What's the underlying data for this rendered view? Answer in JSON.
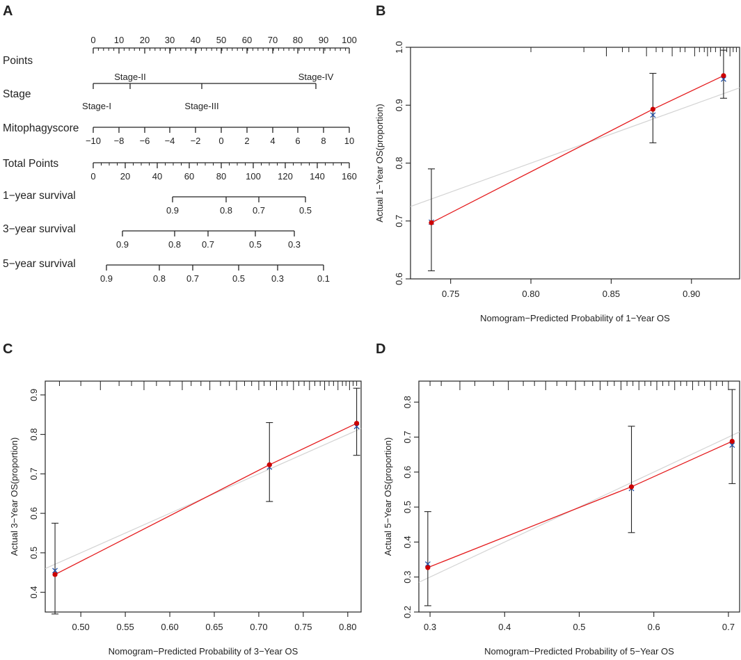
{
  "colors": {
    "fit": "#e41a1c",
    "diagonal": "#d3d3d3",
    "point": "#cc0000",
    "cross": "#1f4ea8",
    "ink": "#222222"
  },
  "chart_data": [
    {
      "panel": "A",
      "type": "nomogram",
      "rows": [
        {
          "label": "Points",
          "kind": "axis",
          "ticks": [
            "0",
            "10",
            "20",
            "30",
            "40",
            "50",
            "60",
            "70",
            "80",
            "90",
            "100"
          ],
          "tick_side": "above",
          "minor": true
        },
        {
          "label": "Stage",
          "kind": "stage",
          "labels_above": [
            "Stage-II",
            "Stage-IV"
          ],
          "labels_below": [
            "Stage-I",
            "Stage-III"
          ]
        },
        {
          "label": "Mitophagyscore",
          "kind": "axis",
          "ticks": [
            "−10",
            "−8",
            "−6",
            "−4",
            "−2",
            "0",
            "2",
            "4",
            "6",
            "8",
            "10"
          ],
          "tick_side": "below",
          "minor": false
        },
        {
          "label": "Total Points",
          "kind": "axis",
          "ticks": [
            "0",
            "20",
            "40",
            "60",
            "80",
            "100",
            "120",
            "140",
            "160"
          ],
          "tick_side": "below",
          "minor": true
        },
        {
          "label": "1−year survival",
          "kind": "axis",
          "ticks": [
            "0.9",
            "0.8",
            "0.7",
            "0.5"
          ],
          "tick_side": "below",
          "minor": false
        },
        {
          "label": "3−year survival",
          "kind": "axis",
          "ticks": [
            "0.9",
            "0.8",
            "0.7",
            "0.5",
            "0.3"
          ],
          "tick_side": "below",
          "minor": false
        },
        {
          "label": "5−year survival",
          "kind": "axis",
          "ticks": [
            "0.9",
            "0.8",
            "0.7",
            "0.5",
            "0.3",
            "0.1"
          ],
          "tick_side": "below",
          "minor": false
        }
      ],
      "points_by_variable": {
        "Stage-I": 0,
        "Stage-II": 14,
        "Stage-III": 42,
        "Stage-IV": 87,
        "Mitophagyscore_at_-10": 0,
        "Mitophagyscore_at_10": 100
      }
    },
    {
      "panel": "B",
      "type": "calibration",
      "xlabel": "Nomogram−Predicted Probability of 1−Year OS",
      "ylabel": "Actual 1−Year OS(proportion)",
      "xlim": [
        0.725,
        0.93
      ],
      "ylim": [
        0.6,
        1.0
      ],
      "xticks": [
        0.75,
        0.8,
        0.85,
        0.9
      ],
      "yticks": [
        0.6,
        0.7,
        0.8,
        0.9,
        1.0
      ],
      "points": [
        {
          "x": 0.738,
          "y": 0.697,
          "lower": 0.614,
          "upper": 0.79,
          "corrected": 0.698
        },
        {
          "x": 0.876,
          "y": 0.893,
          "lower": 0.835,
          "upper": 0.955,
          "corrected": 0.883
        },
        {
          "x": 0.92,
          "y": 0.951,
          "lower": 0.912,
          "upper": 0.995,
          "corrected": 0.945
        }
      ],
      "rug": [
        0.8,
        0.833,
        0.847,
        0.857,
        0.861,
        0.872,
        0.878,
        0.882,
        0.888,
        0.893,
        0.896,
        0.902,
        0.905,
        0.908,
        0.91,
        0.912,
        0.915,
        0.918,
        0.92,
        0.922,
        0.924,
        0.926,
        0.928
      ]
    },
    {
      "panel": "C",
      "type": "calibration",
      "xlabel": "Nomogram−Predicted Probability of 3−Year OS",
      "ylabel": "Actual 3−Year OS(proportion)",
      "xlim": [
        0.46,
        0.815
      ],
      "ylim": [
        0.35,
        0.935
      ],
      "xticks": [
        0.5,
        0.55,
        0.6,
        0.65,
        0.7,
        0.75,
        0.8
      ],
      "yticks": [
        0.4,
        0.5,
        0.6,
        0.7,
        0.8,
        0.9
      ],
      "points": [
        {
          "x": 0.471,
          "y": 0.445,
          "lower": 0.345,
          "upper": 0.575,
          "corrected": 0.455
        },
        {
          "x": 0.712,
          "y": 0.723,
          "lower": 0.63,
          "upper": 0.83,
          "corrected": 0.717
        },
        {
          "x": 0.81,
          "y": 0.828,
          "lower": 0.747,
          "upper": 0.917,
          "corrected": 0.82
        }
      ],
      "rug": [
        0.476,
        0.5,
        0.522,
        0.543,
        0.557,
        0.571,
        0.585,
        0.6,
        0.614,
        0.624,
        0.635,
        0.645,
        0.657,
        0.667,
        0.675,
        0.684,
        0.692,
        0.7,
        0.706,
        0.713,
        0.72,
        0.726,
        0.732,
        0.739,
        0.745,
        0.751,
        0.757,
        0.763,
        0.769,
        0.774,
        0.779,
        0.784,
        0.789,
        0.794,
        0.798,
        0.802,
        0.806,
        0.81
      ]
    },
    {
      "panel": "D",
      "type": "calibration",
      "xlabel": "Nomogram−Predicted Probability of 5−Year OS",
      "ylabel": "Actual 5−Year OS(proportion)",
      "xlim": [
        0.285,
        0.715
      ],
      "ylim": [
        0.2,
        0.86
      ],
      "xticks": [
        0.3,
        0.4,
        0.5,
        0.6,
        0.7
      ],
      "yticks": [
        0.2,
        0.3,
        0.4,
        0.5,
        0.6,
        0.7,
        0.8
      ],
      "points": [
        {
          "x": 0.297,
          "y": 0.327,
          "lower": 0.218,
          "upper": 0.487,
          "corrected": 0.337
        },
        {
          "x": 0.57,
          "y": 0.558,
          "lower": 0.427,
          "upper": 0.731,
          "corrected": 0.553
        },
        {
          "x": 0.705,
          "y": 0.688,
          "lower": 0.567,
          "upper": 0.836,
          "corrected": 0.677
        }
      ],
      "rug": [
        0.3,
        0.315,
        0.34,
        0.36,
        0.385,
        0.405,
        0.425,
        0.44,
        0.455,
        0.47,
        0.483,
        0.495,
        0.507,
        0.518,
        0.528,
        0.538,
        0.547,
        0.556,
        0.564,
        0.572,
        0.58,
        0.588,
        0.596,
        0.604,
        0.612,
        0.62,
        0.628,
        0.636,
        0.644,
        0.652,
        0.66,
        0.668,
        0.676,
        0.684,
        0.692,
        0.7
      ]
    }
  ]
}
